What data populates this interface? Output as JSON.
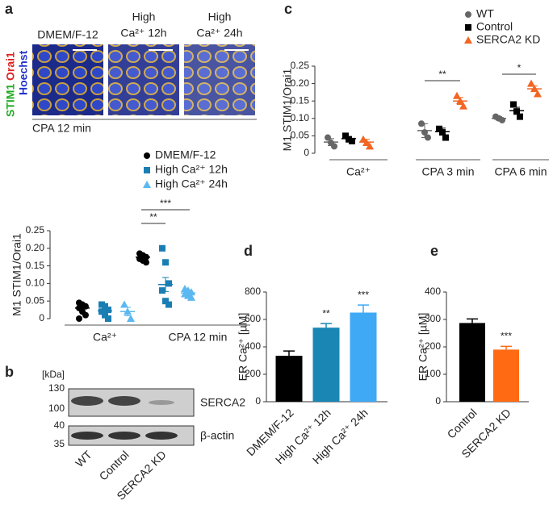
{
  "letters": [
    "a",
    "b",
    "c",
    "d",
    "e"
  ],
  "microscopy": {
    "channels": [
      "STIM1",
      "Orai1",
      "Hoechst"
    ],
    "conditions": [
      {
        "lines": [
          "DMEM/F-12"
        ]
      },
      {
        "lines": [
          "High",
          "Ca²⁺ 12h"
        ]
      },
      {
        "lines": [
          "High",
          "Ca²⁺ 24h"
        ]
      }
    ],
    "caption": "CPA 12 min"
  },
  "blot": {
    "unit": "[kDa]",
    "markers": [
      "130",
      "100",
      "40",
      "35"
    ],
    "proteins": [
      "SERCA2",
      "β-actin"
    ],
    "lanes": [
      "WT",
      "Control",
      "SERCA2 KD"
    ]
  },
  "chart_data": [
    {
      "type": "dot",
      "ylabel": "M1 STIM1/Orai1",
      "categories": [
        "Ca²⁺",
        "CPA 12 min"
      ],
      "ylim": [
        0,
        0.25
      ],
      "yticks": [
        0,
        0.05,
        {
          "value": 0.1,
          "label": "0.10"
        },
        0.15,
        {
          "value": 0.2,
          "label": "0.20"
        },
        0.25
      ],
      "series": [
        {
          "name": "DMEM/F-12",
          "color": "#000000",
          "marker": "circle",
          "values": [
            0.03,
            0.175
          ],
          "errors": [
            0.008,
            0.006
          ],
          "points": [
            [
              0.045,
              0.04,
              0.035,
              0.03,
              0.02,
              0.01,
              0
            ],
            [
              0.185,
              0.18,
              0.175,
              0.17,
              0.165,
              0.16
            ]
          ]
        },
        {
          "name": "High Ca²⁺ 12h",
          "color": "#1b7eb3",
          "marker": "square",
          "values": [
            0.022,
            0.097
          ],
          "errors": [
            0.007,
            0.02
          ],
          "points": [
            [
              0.04,
              0.035,
              0.025,
              0.02,
              0.01,
              0
            ],
            [
              0.2,
              0.16,
              0.1,
              0.08,
              0.05,
              0.04
            ]
          ]
        },
        {
          "name": "High Ca²⁺ 24h",
          "color": "#5bb8f0",
          "marker": "triangle",
          "values": [
            0.02,
            0.073
          ],
          "errors": [
            0.012,
            0.007
          ],
          "points": [
            [
              0.04,
              0.02,
              0
            ],
            [
              0.085,
              0.08,
              0.075,
              0.07,
              0.065,
              0.06
            ]
          ]
        }
      ],
      "annotations": [
        "***",
        "**"
      ]
    },
    {
      "type": "dot",
      "ylabel": "M1 STIM1/Orai1",
      "categories": [
        "Ca²⁺",
        "CPA 3 min",
        "CPA 6 min"
      ],
      "ylim": [
        0,
        0.25
      ],
      "yticks": [
        0,
        0.05,
        {
          "value": 0.1,
          "label": "0.10"
        },
        0.15,
        {
          "value": 0.2,
          "label": "0.20"
        },
        0.25
      ],
      "series": [
        {
          "name": "WT",
          "color": "#666666",
          "marker": "circle",
          "values": [
            0.032,
            0.065,
            0.1
          ],
          "errors": [
            0.01,
            0.02,
            0.005
          ],
          "points": [
            [
              0.045,
              0.03,
              0.02
            ],
            [
              0.085,
              0.06,
              0.045
            ],
            [
              0.105,
              0.1,
              0.095
            ]
          ]
        },
        {
          "name": "Control",
          "color": "#000000",
          "marker": "square",
          "values": [
            0.042,
            0.062,
            0.122
          ],
          "errors": [
            0.006,
            0.01,
            0.01
          ],
          "points": [
            [
              0.05,
              0.04,
              0.035
            ],
            [
              0.07,
              0.06,
              0.045
            ],
            [
              0.14,
              0.12,
              0.105
            ]
          ]
        },
        {
          "name": "SERCA2 KD",
          "color": "#f26522",
          "marker": "triangle",
          "values": [
            0.032,
            0.15,
            0.185
          ],
          "errors": [
            0.008,
            0.01,
            0.008
          ],
          "points": [
            [
              0.04,
              0.03,
              0.02
            ],
            [
              0.165,
              0.15,
              0.135
            ],
            [
              0.2,
              0.185,
              0.17
            ]
          ]
        }
      ],
      "annotations": [
        "**",
        "*"
      ]
    },
    {
      "type": "bar",
      "ylabel": "ER Ca²⁺ [µM]",
      "categories": [
        "DMEM/F-12",
        "High Ca²⁺ 12h",
        "High Ca²⁺ 24h"
      ],
      "values": [
        335,
        540,
        650
      ],
      "errors": [
        35,
        30,
        55
      ],
      "colors": [
        "#000000",
        "#1a86b4",
        "#3fa9f5"
      ],
      "value_labels": [
        null,
        "**",
        "***"
      ],
      "ylim": [
        0,
        800
      ],
      "yticks": [
        0,
        200,
        400,
        600,
        800
      ]
    },
    {
      "type": "bar",
      "ylabel": "ER Ca²⁺ [µM]",
      "categories": [
        "Control",
        "SERCA2 KD"
      ],
      "values": [
        287,
        190
      ],
      "errors": [
        15,
        12
      ],
      "colors": [
        "#000000",
        "#ff6a13"
      ],
      "value_labels": [
        null,
        "***"
      ],
      "ylim": [
        0,
        400
      ],
      "yticks": [
        0,
        100,
        200,
        300,
        400
      ]
    }
  ]
}
